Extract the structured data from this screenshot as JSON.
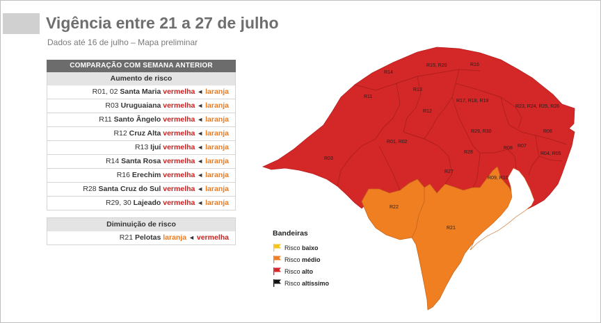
{
  "header": {
    "title": "Vigência entre 21 a 27 de julho",
    "subtitle": "Dados até 16 de julho – Mapa preliminar"
  },
  "comparison": {
    "heading": "COMPARAÇÃO COM SEMANA ANTERIOR",
    "increase_title": "Aumento de risco",
    "increase_rows": [
      {
        "code": "R01, 02",
        "city": "Santa Maria",
        "new": "vermelha",
        "old": "laranja"
      },
      {
        "code": "R03",
        "city": "Uruguaiana",
        "new": "vermelha",
        "old": "laranja"
      },
      {
        "code": "R11",
        "city": "Santo Ângelo",
        "new": "vermelha",
        "old": "laranja"
      },
      {
        "code": "R12",
        "city": "Cruz Alta",
        "new": "vermelha",
        "old": "laranja"
      },
      {
        "code": "R13",
        "city": "Ijuí",
        "new": "vermelha",
        "old": "laranja"
      },
      {
        "code": "R14",
        "city": "Santa Rosa",
        "new": "vermelha",
        "old": "laranja"
      },
      {
        "code": "R16",
        "city": "Erechim",
        "new": "vermelha",
        "old": "laranja"
      },
      {
        "code": "R28",
        "city": "Santa Cruz do Sul",
        "new": "vermelha",
        "old": "laranja"
      },
      {
        "code": "R29, 30",
        "city": "Lajeado",
        "new": "vermelha",
        "old": "laranja"
      }
    ],
    "decrease_title": "Diminuição de risco",
    "decrease_rows": [
      {
        "code": "R21",
        "city": "Pelotas",
        "new": "laranja",
        "old": "vermelha"
      }
    ],
    "arrow": "◄"
  },
  "map": {
    "colors": {
      "high": "#d42727",
      "medium": "#f07f22",
      "low": "#f5c518",
      "very_high": "#111111"
    },
    "region_labels": {
      "r14": "R14",
      "r15_20": "R15, R20",
      "r16": "R16",
      "r13": "R13",
      "r11": "R11",
      "r17_18_19": "R17, R18, R19",
      "r12": "R12",
      "r23_26": "R23, R24, R25, R26",
      "r29_30": "R29, R30",
      "r06": "R06",
      "r03": "R03",
      "r01_02": "R01, R02",
      "r08": "R08",
      "r07": "R07",
      "r04_05": "R04, R05",
      "r28": "R28",
      "r27": "R27",
      "r09_10": "R09, R10",
      "r22": "R22",
      "r21": "R21"
    }
  },
  "legend": {
    "title": "Bandeiras",
    "items": [
      {
        "prefix": "Risco ",
        "level": "baixo",
        "color": "#f5c518"
      },
      {
        "prefix": "Risco ",
        "level": "médio",
        "color": "#f07f22"
      },
      {
        "prefix": "Risco ",
        "level": "alto",
        "color": "#d42727"
      },
      {
        "prefix": "Risco ",
        "level": "altíssimo",
        "color": "#111111"
      }
    ]
  }
}
